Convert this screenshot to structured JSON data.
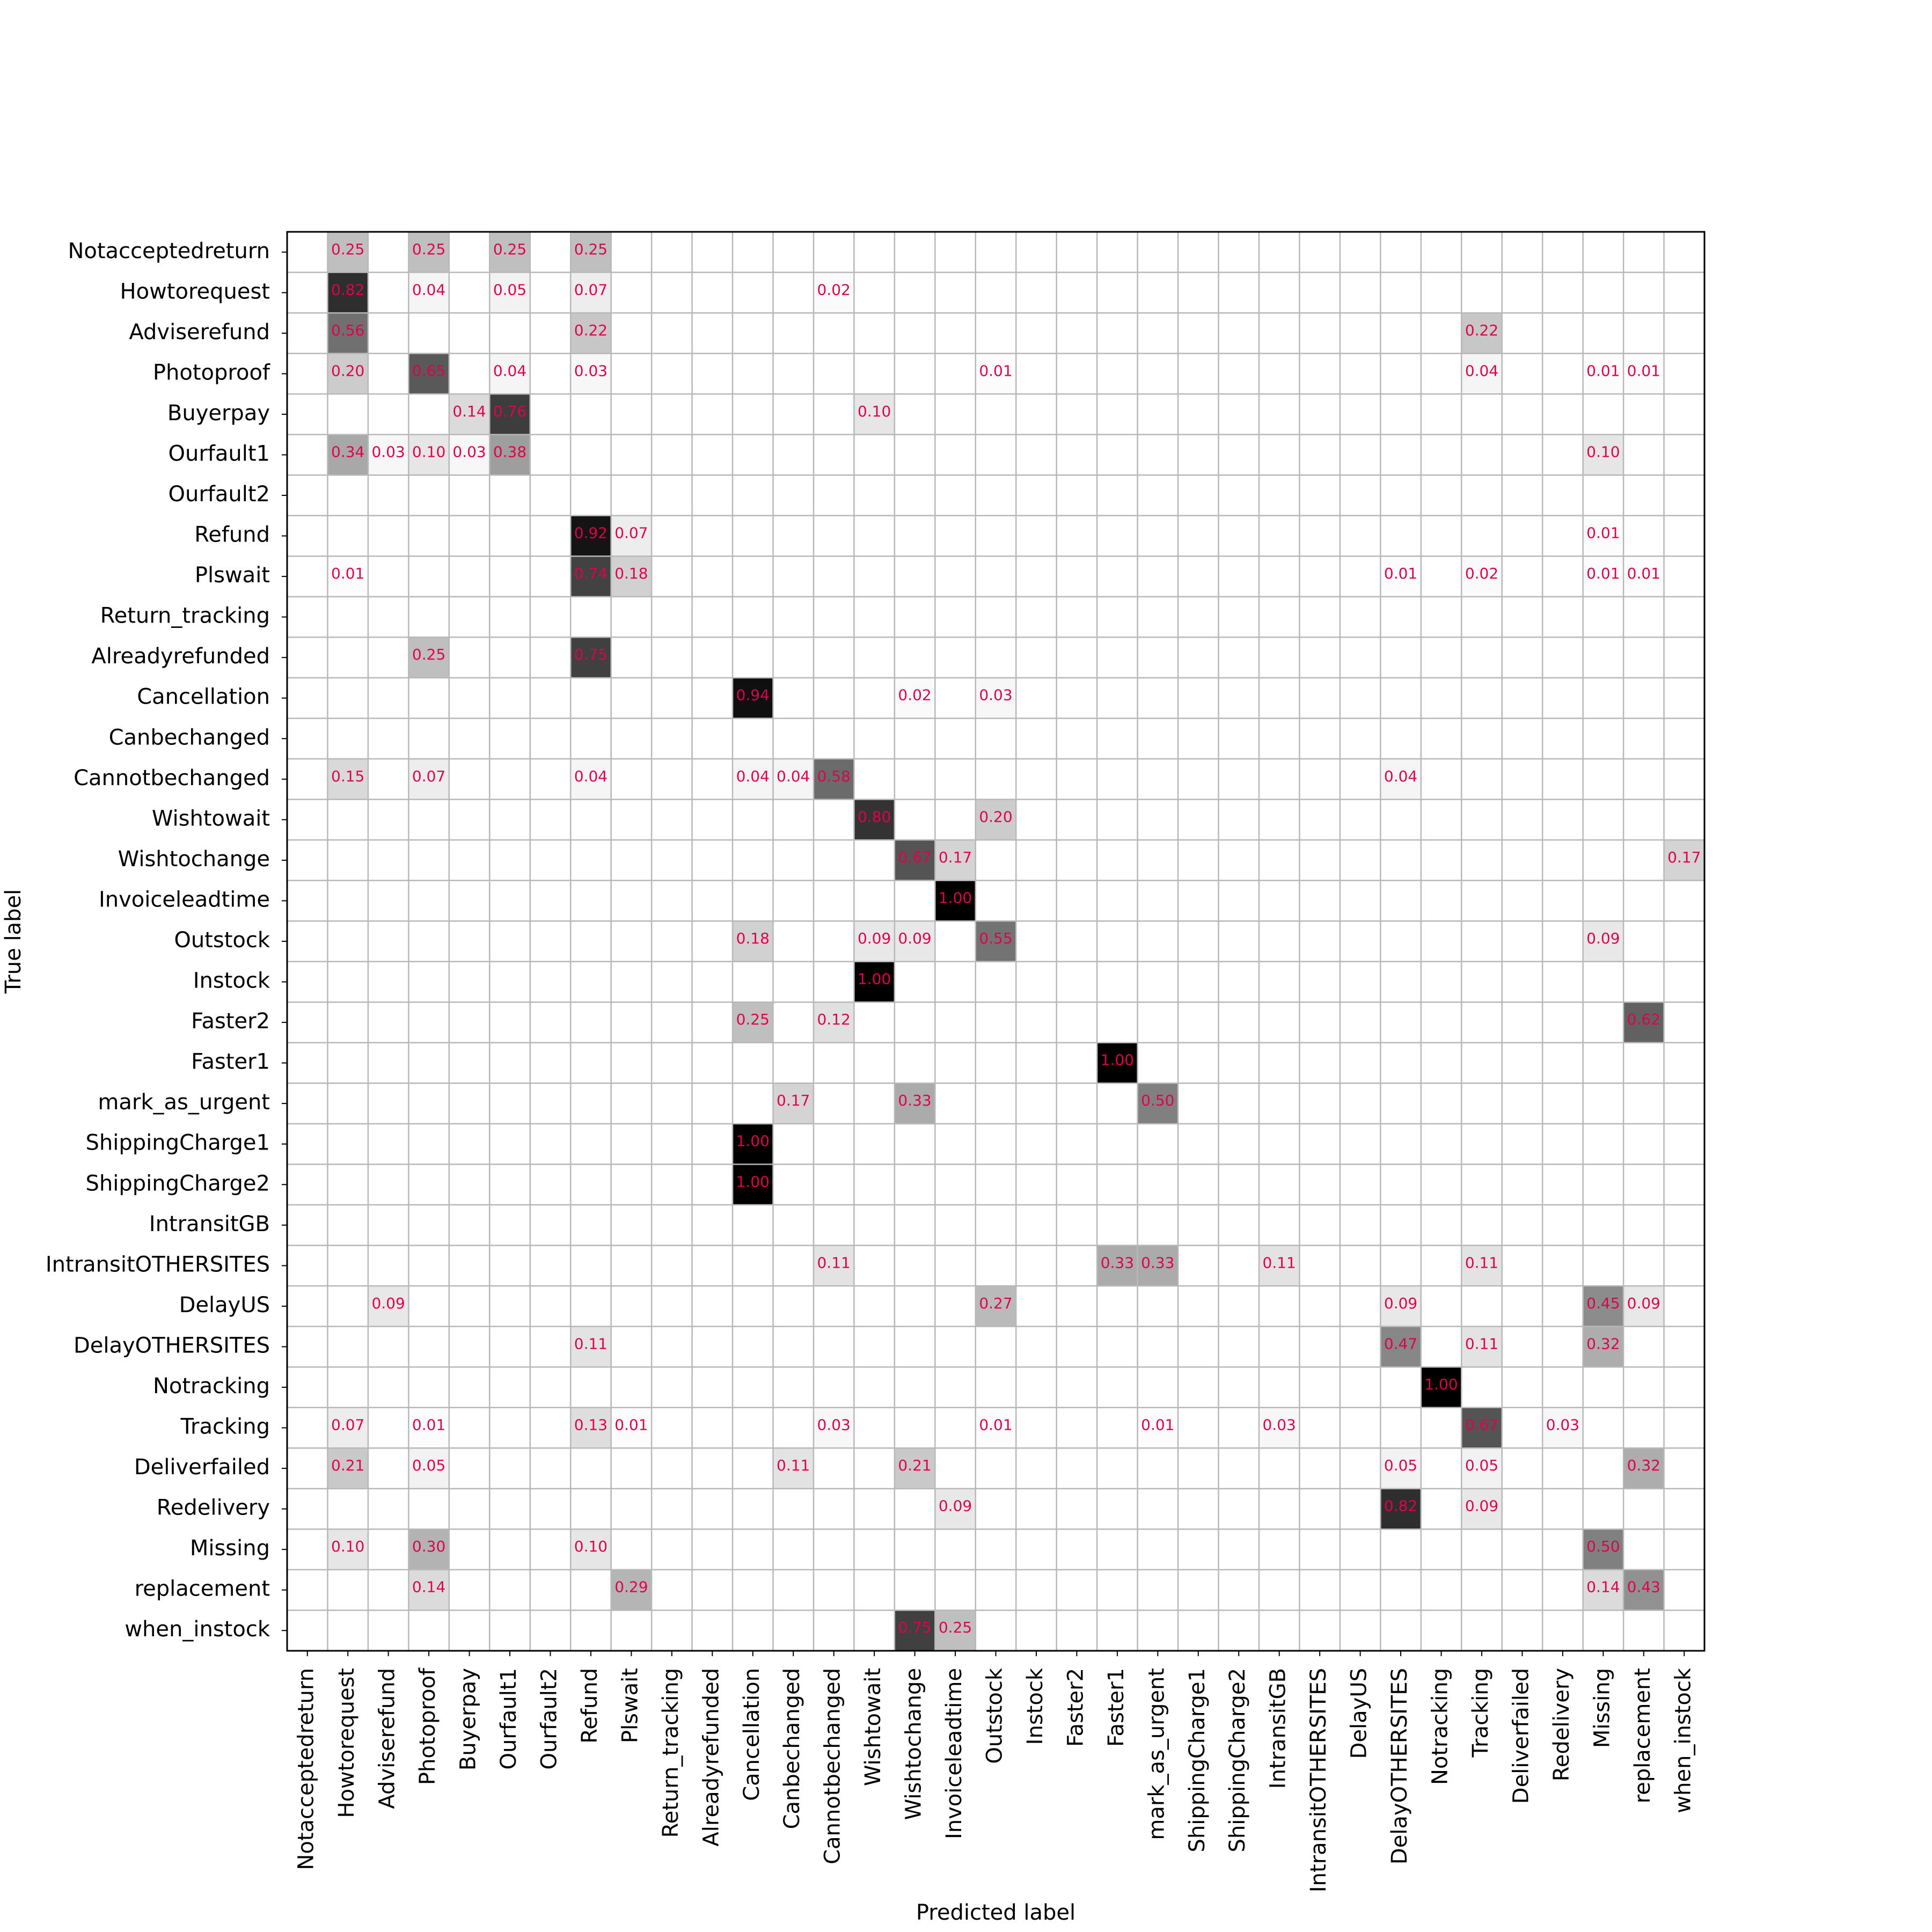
{
  "chart_data": {
    "type": "heatmap",
    "title": "",
    "xlabel": "Predicted label",
    "ylabel": "True label",
    "labels": [
      "Notacceptedreturn",
      "Howtorequest",
      "Adviserefund",
      "Photoproof",
      "Buyerpay",
      "Ourfault1",
      "Ourfault2",
      "Refund",
      "Plswait",
      "Return_tracking",
      "Alreadyrefunded",
      "Cancellation",
      "Canbechanged",
      "Cannotbechanged",
      "Wishtowait",
      "Wishtochange",
      "Invoiceleadtime",
      "Outstock",
      "Instock",
      "Faster2",
      "Faster1",
      "mark_as_urgent",
      "ShippingCharge1",
      "ShippingCharge2",
      "IntransitGB",
      "IntransitOTHERSITES",
      "DelayUS",
      "DelayOTHERSITES",
      "Notracking",
      "Tracking",
      "Deliverfailed",
      "Redelivery",
      "Missing",
      "replacement",
      "when_instock"
    ],
    "value_range": [
      0,
      1
    ],
    "colormap": "greys",
    "annotation_color": "#e0004a",
    "cells": [
      {
        "r": 0,
        "c": 1,
        "v": 0.25
      },
      {
        "r": 0,
        "c": 3,
        "v": 0.25
      },
      {
        "r": 0,
        "c": 5,
        "v": 0.25
      },
      {
        "r": 0,
        "c": 7,
        "v": 0.25
      },
      {
        "r": 1,
        "c": 1,
        "v": 0.82
      },
      {
        "r": 1,
        "c": 3,
        "v": 0.04
      },
      {
        "r": 1,
        "c": 5,
        "v": 0.05
      },
      {
        "r": 1,
        "c": 7,
        "v": 0.07
      },
      {
        "r": 1,
        "c": 13,
        "v": 0.02
      },
      {
        "r": 2,
        "c": 1,
        "v": 0.56
      },
      {
        "r": 2,
        "c": 7,
        "v": 0.22
      },
      {
        "r": 2,
        "c": 29,
        "v": 0.22
      },
      {
        "r": 3,
        "c": 1,
        "v": 0.2
      },
      {
        "r": 3,
        "c": 3,
        "v": 0.65
      },
      {
        "r": 3,
        "c": 5,
        "v": 0.04
      },
      {
        "r": 3,
        "c": 7,
        "v": 0.03
      },
      {
        "r": 3,
        "c": 17,
        "v": 0.01
      },
      {
        "r": 3,
        "c": 29,
        "v": 0.04
      },
      {
        "r": 3,
        "c": 32,
        "v": 0.01
      },
      {
        "r": 3,
        "c": 33,
        "v": 0.01
      },
      {
        "r": 4,
        "c": 4,
        "v": 0.14
      },
      {
        "r": 4,
        "c": 5,
        "v": 0.76
      },
      {
        "r": 4,
        "c": 14,
        "v": 0.1
      },
      {
        "r": 5,
        "c": 1,
        "v": 0.34
      },
      {
        "r": 5,
        "c": 2,
        "v": 0.03
      },
      {
        "r": 5,
        "c": 3,
        "v": 0.1
      },
      {
        "r": 5,
        "c": 4,
        "v": 0.03
      },
      {
        "r": 5,
        "c": 5,
        "v": 0.38
      },
      {
        "r": 5,
        "c": 32,
        "v": 0.1
      },
      {
        "r": 7,
        "c": 7,
        "v": 0.92
      },
      {
        "r": 7,
        "c": 8,
        "v": 0.07
      },
      {
        "r": 7,
        "c": 32,
        "v": 0.01
      },
      {
        "r": 8,
        "c": 1,
        "v": 0.01
      },
      {
        "r": 8,
        "c": 7,
        "v": 0.74
      },
      {
        "r": 8,
        "c": 8,
        "v": 0.18
      },
      {
        "r": 8,
        "c": 27,
        "v": 0.01
      },
      {
        "r": 8,
        "c": 29,
        "v": 0.02
      },
      {
        "r": 8,
        "c": 32,
        "v": 0.01
      },
      {
        "r": 8,
        "c": 33,
        "v": 0.01
      },
      {
        "r": 10,
        "c": 3,
        "v": 0.25
      },
      {
        "r": 10,
        "c": 7,
        "v": 0.75
      },
      {
        "r": 11,
        "c": 11,
        "v": 0.94
      },
      {
        "r": 11,
        "c": 15,
        "v": 0.02
      },
      {
        "r": 11,
        "c": 17,
        "v": 0.03
      },
      {
        "r": 13,
        "c": 1,
        "v": 0.15
      },
      {
        "r": 13,
        "c": 3,
        "v": 0.07
      },
      {
        "r": 13,
        "c": 7,
        "v": 0.04
      },
      {
        "r": 13,
        "c": 11,
        "v": 0.04
      },
      {
        "r": 13,
        "c": 12,
        "v": 0.04
      },
      {
        "r": 13,
        "c": 13,
        "v": 0.58
      },
      {
        "r": 13,
        "c": 27,
        "v": 0.04
      },
      {
        "r": 14,
        "c": 14,
        "v": 0.8
      },
      {
        "r": 14,
        "c": 17,
        "v": 0.2
      },
      {
        "r": 15,
        "c": 15,
        "v": 0.67
      },
      {
        "r": 15,
        "c": 16,
        "v": 0.17
      },
      {
        "r": 15,
        "c": 34,
        "v": 0.17
      },
      {
        "r": 16,
        "c": 16,
        "v": 1.0
      },
      {
        "r": 17,
        "c": 11,
        "v": 0.18
      },
      {
        "r": 17,
        "c": 14,
        "v": 0.09
      },
      {
        "r": 17,
        "c": 15,
        "v": 0.09
      },
      {
        "r": 17,
        "c": 17,
        "v": 0.55
      },
      {
        "r": 17,
        "c": 32,
        "v": 0.09
      },
      {
        "r": 18,
        "c": 14,
        "v": 1.0
      },
      {
        "r": 19,
        "c": 11,
        "v": 0.25
      },
      {
        "r": 19,
        "c": 13,
        "v": 0.12
      },
      {
        "r": 19,
        "c": 33,
        "v": 0.62
      },
      {
        "r": 20,
        "c": 20,
        "v": 1.0
      },
      {
        "r": 21,
        "c": 12,
        "v": 0.17
      },
      {
        "r": 21,
        "c": 15,
        "v": 0.33
      },
      {
        "r": 21,
        "c": 21,
        "v": 0.5
      },
      {
        "r": 22,
        "c": 11,
        "v": 1.0
      },
      {
        "r": 23,
        "c": 11,
        "v": 1.0
      },
      {
        "r": 25,
        "c": 13,
        "v": 0.11
      },
      {
        "r": 25,
        "c": 20,
        "v": 0.33
      },
      {
        "r": 25,
        "c": 21,
        "v": 0.33
      },
      {
        "r": 25,
        "c": 24,
        "v": 0.11
      },
      {
        "r": 25,
        "c": 29,
        "v": 0.11
      },
      {
        "r": 26,
        "c": 2,
        "v": 0.09
      },
      {
        "r": 26,
        "c": 17,
        "v": 0.27
      },
      {
        "r": 26,
        "c": 27,
        "v": 0.09
      },
      {
        "r": 26,
        "c": 32,
        "v": 0.45
      },
      {
        "r": 26,
        "c": 33,
        "v": 0.09
      },
      {
        "r": 27,
        "c": 7,
        "v": 0.11
      },
      {
        "r": 27,
        "c": 27,
        "v": 0.47
      },
      {
        "r": 27,
        "c": 29,
        "v": 0.11
      },
      {
        "r": 27,
        "c": 32,
        "v": 0.32
      },
      {
        "r": 28,
        "c": 28,
        "v": 1.0
      },
      {
        "r": 29,
        "c": 1,
        "v": 0.07
      },
      {
        "r": 29,
        "c": 3,
        "v": 0.01
      },
      {
        "r": 29,
        "c": 7,
        "v": 0.13
      },
      {
        "r": 29,
        "c": 8,
        "v": 0.01
      },
      {
        "r": 29,
        "c": 13,
        "v": 0.03
      },
      {
        "r": 29,
        "c": 17,
        "v": 0.01
      },
      {
        "r": 29,
        "c": 21,
        "v": 0.01
      },
      {
        "r": 29,
        "c": 24,
        "v": 0.03
      },
      {
        "r": 29,
        "c": 29,
        "v": 0.67
      },
      {
        "r": 29,
        "c": 31,
        "v": 0.03
      },
      {
        "r": 30,
        "c": 1,
        "v": 0.21
      },
      {
        "r": 30,
        "c": 3,
        "v": 0.05
      },
      {
        "r": 30,
        "c": 12,
        "v": 0.11
      },
      {
        "r": 30,
        "c": 15,
        "v": 0.21
      },
      {
        "r": 30,
        "c": 27,
        "v": 0.05
      },
      {
        "r": 30,
        "c": 29,
        "v": 0.05
      },
      {
        "r": 30,
        "c": 33,
        "v": 0.32
      },
      {
        "r": 31,
        "c": 16,
        "v": 0.09
      },
      {
        "r": 31,
        "c": 27,
        "v": 0.82
      },
      {
        "r": 31,
        "c": 29,
        "v": 0.09
      },
      {
        "r": 32,
        "c": 1,
        "v": 0.1
      },
      {
        "r": 32,
        "c": 3,
        "v": 0.3
      },
      {
        "r": 32,
        "c": 7,
        "v": 0.1
      },
      {
        "r": 32,
        "c": 32,
        "v": 0.5
      },
      {
        "r": 33,
        "c": 3,
        "v": 0.14
      },
      {
        "r": 33,
        "c": 8,
        "v": 0.29
      },
      {
        "r": 33,
        "c": 32,
        "v": 0.14
      },
      {
        "r": 33,
        "c": 33,
        "v": 0.43
      },
      {
        "r": 34,
        "c": 15,
        "v": 0.75
      },
      {
        "r": 34,
        "c": 16,
        "v": 0.25
      }
    ]
  }
}
